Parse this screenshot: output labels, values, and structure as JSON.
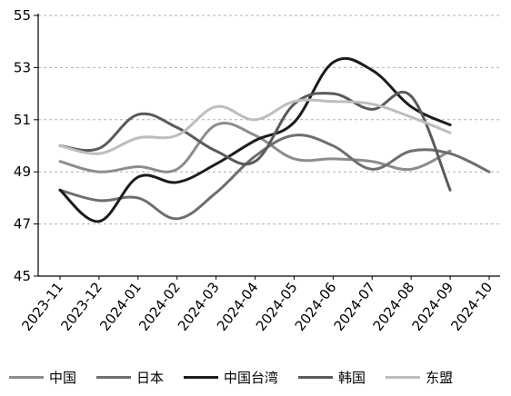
{
  "chart_data": {
    "type": "line",
    "title": "",
    "xlabel": "",
    "ylabel": "",
    "categories": [
      "2023-11",
      "2023-12",
      "2024-01",
      "2024-02",
      "2024-03",
      "2024-04",
      "2024-05",
      "2024-06",
      "2024-07",
      "2024-08",
      "2024-09",
      "2024-10"
    ],
    "ylim": [
      45,
      55
    ],
    "yticks": [
      "45",
      "47",
      "49",
      "51",
      "53",
      "55"
    ],
    "grid": "horizontal-dashed",
    "legend_position": "bottom",
    "series": [
      {
        "name": "中国",
        "color": "#8c8c8c",
        "width": 3,
        "values": [
          49.4,
          49.0,
          49.2,
          49.1,
          50.8,
          50.4,
          49.5,
          49.5,
          49.4,
          49.1,
          49.8,
          null
        ]
      },
      {
        "name": "日本",
        "color": "#6e6e6e",
        "width": 3,
        "values": [
          48.3,
          47.9,
          48.0,
          47.2,
          48.2,
          49.6,
          50.4,
          50.0,
          49.1,
          49.8,
          49.7,
          49.0
        ]
      },
      {
        "name": "中国台湾",
        "color": "#1c1c1c",
        "width": 3,
        "values": [
          48.3,
          47.1,
          48.8,
          48.6,
          49.3,
          50.2,
          50.9,
          53.2,
          52.9,
          51.5,
          50.8,
          null
        ]
      },
      {
        "name": "韩国",
        "color": "#5a5a5a",
        "width": 3,
        "values": [
          50.0,
          49.9,
          51.2,
          50.7,
          49.8,
          49.4,
          51.6,
          52.0,
          51.4,
          51.9,
          48.3,
          null
        ]
      },
      {
        "name": "东盟",
        "color": "#bdbdbd",
        "width": 3,
        "values": [
          50.0,
          49.7,
          50.3,
          50.4,
          51.5,
          51.0,
          51.7,
          51.7,
          51.6,
          51.1,
          50.5,
          null
        ]
      }
    ]
  }
}
